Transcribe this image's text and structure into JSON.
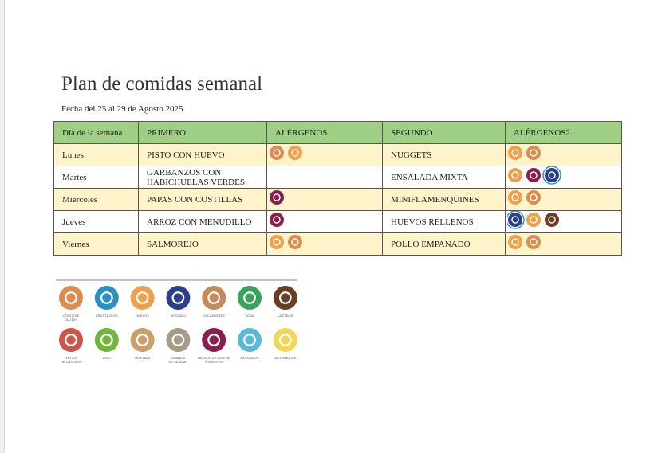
{
  "header": {
    "title": "Plan de comidas semanal",
    "date": "Fecha del 25 al 29 de Agosto 2025"
  },
  "table": {
    "columns": [
      "Día de la semana",
      "PRIMERO",
      "ALÉRGENOS",
      "SEGUNDO",
      "ALÉRGENOS2"
    ],
    "rows": [
      [
        "Lunes",
        "PISTO CON HUEVO",
        "NUGGETS"
      ],
      [
        "Martes",
        "GARBANZOS CON HABICHUELAS VERDES",
        "ENSALADA MIXTA"
      ],
      [
        "Miércoles",
        "PAPAS CON COSTILLAS",
        "MINIFLAMENQUINES"
      ],
      [
        "Jueves",
        "ARROZ CON MENUDILLO",
        "HUEVOS RELLENOS"
      ],
      [
        "Viernes",
        "SALMOREJO",
        "POLLO EMPANADO"
      ]
    ]
  },
  "legend": [
    [
      "CONTIENE",
      "GLUTEN"
    ],
    [
      "CRUSTÁCEOS"
    ],
    [
      "HUEVOS"
    ],
    [
      "PESCADO"
    ],
    [
      "CACAHUETES"
    ],
    [
      "SOJA"
    ],
    [
      "LÁCTEOS"
    ],
    [
      "FRUTOS",
      "DE CÁSCARA"
    ],
    [
      "APIO"
    ],
    [
      "MOSTAZA"
    ],
    [
      "GRANOS",
      "DE SÉSAMO"
    ],
    [
      "DIÓXIDO DE AZUFRE",
      "Y SULFITOS"
    ],
    [
      "MOLUSCOS"
    ],
    [
      "ALTRAMUCES"
    ]
  ]
}
